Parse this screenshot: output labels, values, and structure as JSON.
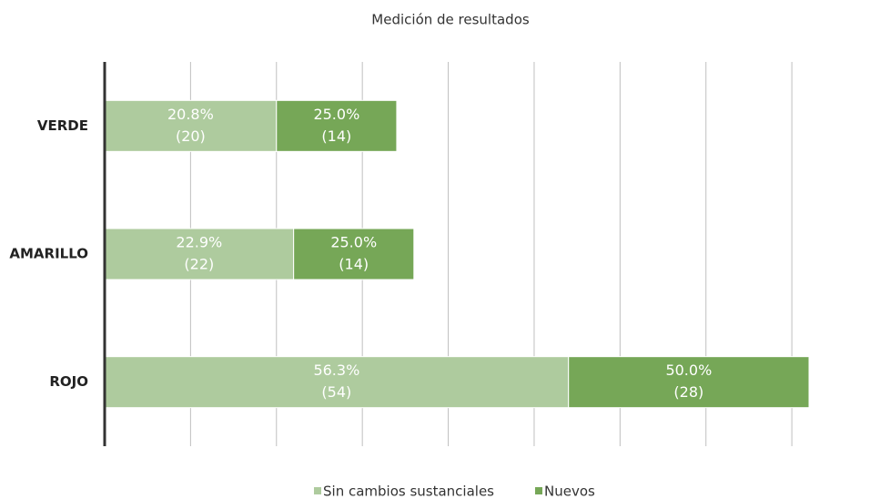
{
  "chart_data": {
    "type": "hbar_stacked",
    "title": "Medición de resultados",
    "categories": [
      "VERDE",
      "AMARILLO",
      "ROJO"
    ],
    "series": [
      {
        "name": "Sin cambios sustanciales",
        "color": "#aecb9e",
        "values": [
          20,
          22,
          54
        ],
        "value_labels": [
          "(20)",
          "(22)",
          "(54)"
        ],
        "percent_labels": [
          "20.8%",
          "22.9%",
          "56.3%"
        ]
      },
      {
        "name": "Nuevos",
        "color": "#76a757",
        "values": [
          14,
          14,
          28
        ],
        "value_labels": [
          "(14)",
          "(14)",
          "(28)"
        ],
        "percent_labels": [
          "25.0%",
          "25.0%",
          "50.0%"
        ]
      }
    ],
    "xlim": [
      0,
      82
    ],
    "xticks": [
      0,
      10,
      20,
      30,
      40,
      50,
      60,
      70,
      80
    ],
    "grid": true,
    "legend": "bottom"
  }
}
